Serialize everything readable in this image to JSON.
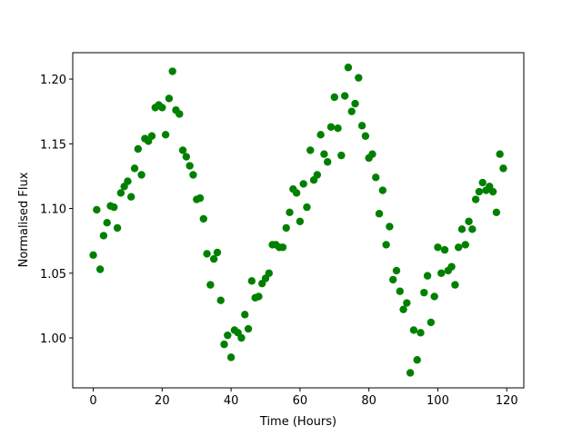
{
  "chart_data": {
    "type": "scatter",
    "xlabel": "Time (Hours)",
    "ylabel": "Normalised Flux",
    "color": "#008000",
    "x": [
      0,
      1,
      2,
      3,
      4,
      5,
      6,
      7,
      8,
      9,
      10,
      11,
      12,
      13,
      14,
      15,
      16,
      17,
      18,
      19,
      20,
      21,
      22,
      23,
      24,
      25,
      26,
      27,
      28,
      29,
      30,
      31,
      32,
      33,
      34,
      35,
      36,
      37,
      38,
      39,
      40,
      41,
      42,
      43,
      44,
      45,
      46,
      47,
      48,
      49,
      50,
      51,
      52,
      53,
      54,
      55,
      56,
      57,
      58,
      59,
      60,
      61,
      62,
      63,
      64,
      65,
      66,
      67,
      68,
      69,
      70,
      71,
      72,
      73,
      74,
      75,
      76,
      77,
      78,
      79,
      80,
      81,
      82,
      83,
      84,
      85,
      86,
      87,
      88,
      89,
      90,
      91,
      92,
      93,
      94,
      95,
      96,
      97,
      98,
      99,
      100,
      101,
      102,
      103,
      104,
      105,
      106,
      107,
      108,
      109,
      110,
      111,
      112,
      113,
      114,
      115,
      116,
      117,
      118,
      119
    ],
    "values": [
      1.064,
      1.099,
      1.053,
      1.079,
      1.089,
      1.102,
      1.101,
      1.085,
      1.112,
      1.117,
      1.121,
      1.109,
      1.131,
      1.146,
      1.126,
      1.154,
      1.152,
      1.156,
      1.178,
      1.18,
      1.178,
      1.157,
      1.185,
      1.206,
      1.176,
      1.173,
      1.145,
      1.14,
      1.133,
      1.126,
      1.107,
      1.108,
      1.092,
      1.065,
      1.041,
      1.061,
      1.066,
      1.029,
      0.995,
      1.002,
      0.985,
      1.006,
      1.004,
      1.0,
      1.018,
      1.007,
      1.044,
      1.031,
      1.032,
      1.042,
      1.046,
      1.05,
      1.072,
      1.072,
      1.07,
      1.07,
      1.085,
      1.097,
      1.115,
      1.112,
      1.09,
      1.119,
      1.101,
      1.145,
      1.122,
      1.126,
      1.157,
      1.142,
      1.136,
      1.163,
      1.186,
      1.162,
      1.141,
      1.187,
      1.209,
      1.175,
      1.181,
      1.201,
      1.164,
      1.156,
      1.139,
      1.142,
      1.124,
      1.096,
      1.114,
      1.072,
      1.086,
      1.045,
      1.052,
      1.036,
      1.022,
      1.027,
      0.973,
      1.006,
      0.983,
      1.004,
      1.035,
      1.048,
      1.012,
      1.032,
      1.07,
      1.05,
      1.068,
      1.052,
      1.055,
      1.041,
      1.07,
      1.084,
      1.072,
      1.09,
      1.084,
      1.107,
      1.113,
      1.12,
      1.114,
      1.117,
      1.113,
      1.097,
      1.142,
      1.131
    ],
    "xlim": [
      -5.95,
      124.95
    ],
    "xticks": [
      0,
      20,
      40,
      60,
      80,
      100,
      120
    ],
    "ylim": [
      0.9614,
      1.2204
    ],
    "yticks": [
      {
        "value": 1,
        "label": "1.00"
      },
      1.05,
      {
        "value": 1.1,
        "label": "1.10"
      },
      1.15,
      {
        "value": 1.2,
        "label": "1.20"
      }
    ]
  }
}
